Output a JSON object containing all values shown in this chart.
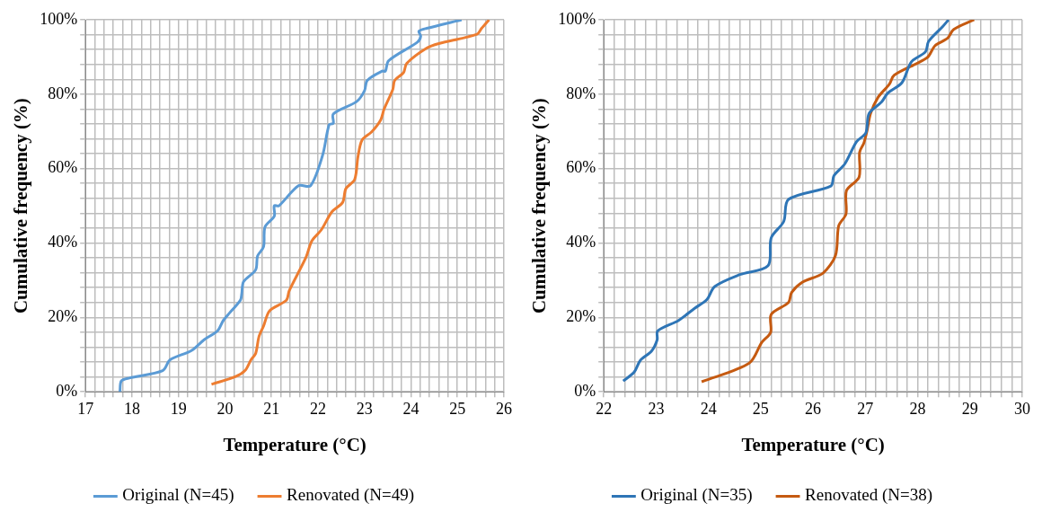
{
  "chart_data": [
    {
      "type": "line",
      "xlabel": "Temperature (°C)",
      "ylabel": "Cumulative frequency (%)",
      "legend": "bottom",
      "grid": true,
      "marker": "none",
      "line_style": "solid",
      "xlim": [
        17,
        26
      ],
      "ylim": [
        0,
        100
      ],
      "xticks": [
        17,
        {
          "value": 17.2,
          "label": null
        },
        {
          "value": 17.4,
          "label": null
        },
        {
          "value": 17.6,
          "label": null
        },
        {
          "value": 17.8,
          "label": null
        },
        18,
        {
          "value": 18.2,
          "label": null
        },
        {
          "value": 18.4,
          "label": null
        },
        {
          "value": 18.6,
          "label": null
        },
        {
          "value": 18.8,
          "label": null
        },
        19,
        {
          "value": 19.2,
          "label": null
        },
        {
          "value": 19.4,
          "label": null
        },
        {
          "value": 19.6,
          "label": null
        },
        {
          "value": 19.8,
          "label": null
        },
        20,
        {
          "value": 20.2,
          "label": null
        },
        {
          "value": 20.4,
          "label": null
        },
        {
          "value": 20.6,
          "label": null
        },
        {
          "value": 20.8,
          "label": null
        },
        21,
        {
          "value": 21.2,
          "label": null
        },
        {
          "value": 21.4,
          "label": null
        },
        {
          "value": 21.6,
          "label": null
        },
        {
          "value": 21.8,
          "label": null
        },
        22,
        {
          "value": 22.2,
          "label": null
        },
        {
          "value": 22.4,
          "label": null
        },
        {
          "value": 22.6,
          "label": null
        },
        {
          "value": 22.8,
          "label": null
        },
        23,
        {
          "value": 23.2,
          "label": null
        },
        {
          "value": 23.4,
          "label": null
        },
        {
          "value": 23.6,
          "label": null
        },
        {
          "value": 23.8,
          "label": null
        },
        24,
        {
          "value": 24.2,
          "label": null
        },
        {
          "value": 24.4,
          "label": null
        },
        {
          "value": 24.6,
          "label": null
        },
        {
          "value": 24.8,
          "label": null
        },
        25,
        {
          "value": 25.2,
          "label": null
        },
        {
          "value": 25.4,
          "label": null
        },
        {
          "value": 25.6,
          "label": null
        },
        {
          "value": 25.8,
          "label": null
        },
        26
      ],
      "yticks": [
        {
          "value": 0,
          "label": "0%"
        },
        {
          "value": 4,
          "label": null
        },
        {
          "value": 8,
          "label": null
        },
        {
          "value": 12,
          "label": null
        },
        {
          "value": 16,
          "label": null
        },
        {
          "value": 20,
          "label": "20%"
        },
        {
          "value": 24,
          "label": null
        },
        {
          "value": 28,
          "label": null
        },
        {
          "value": 32,
          "label": null
        },
        {
          "value": 36,
          "label": null
        },
        {
          "value": 40,
          "label": "40%"
        },
        {
          "value": 44,
          "label": null
        },
        {
          "value": 48,
          "label": null
        },
        {
          "value": 52,
          "label": null
        },
        {
          "value": 56,
          "label": null
        },
        {
          "value": 60,
          "label": "60%"
        },
        {
          "value": 64,
          "label": null
        },
        {
          "value": 68,
          "label": null
        },
        {
          "value": 72,
          "label": null
        },
        {
          "value": 76,
          "label": null
        },
        {
          "value": 80,
          "label": "80%"
        },
        {
          "value": 84,
          "label": null
        },
        {
          "value": 88,
          "label": null
        },
        {
          "value": 92,
          "label": null
        },
        {
          "value": 96,
          "label": null
        },
        {
          "value": 100,
          "label": "100%"
        }
      ],
      "series": [
        {
          "name": "Original (N=45)",
          "color": "#5b9bd5",
          "x": [
            17.74,
            17.77,
            17.94,
            18.66,
            18.82,
            19.28,
            19.55,
            19.84,
            19.97,
            20.33,
            20.36,
            20.4,
            20.66,
            20.7,
            20.83,
            20.86,
            21.06,
            21.06,
            21.16,
            21.58,
            21.84,
            22.1,
            22.24,
            22.33,
            22.33,
            22.83,
            23,
            23.06,
            23.38,
            23.45,
            23.52,
            24.14,
            24.21,
            24.17,
            24.34,
            25.09
          ],
          "values": [
            0,
            2.9,
            3.7,
            5.7,
            8.6,
            11.1,
            14,
            16.4,
            19.3,
            24.6,
            26.3,
            29.6,
            32.8,
            36.5,
            39,
            44.3,
            47.2,
            50,
            50,
            55.4,
            55.4,
            63.6,
            71.8,
            72.2,
            74.7,
            78,
            80.9,
            83.7,
            86.2,
            86.2,
            89,
            94,
            95.6,
            96.9,
            97.7,
            100
          ]
        },
        {
          "name": "Renovated (N=49)",
          "color": "#ed7d31",
          "x": [
            19.71,
            20.23,
            20.43,
            20.56,
            20.66,
            20.73,
            20.83,
            20.96,
            21.32,
            21.38,
            21.74,
            21.87,
            22.07,
            22.3,
            22.53,
            22.6,
            22.79,
            22.86,
            22.95,
            23.15,
            23.35,
            23.42,
            23.61,
            23.65,
            23.84,
            23.91,
            24.34,
            24.6,
            25.42,
            25.52,
            25.68
          ],
          "values": [
            2,
            4.1,
            5.7,
            8.6,
            10.3,
            14.8,
            17.7,
            21.8,
            24.6,
            27.1,
            36.1,
            40.6,
            43.5,
            48.4,
            50.9,
            54.6,
            57.1,
            63.2,
            67.7,
            69.8,
            73.1,
            75.9,
            81.3,
            83.7,
            85.8,
            88.3,
            92.4,
            93.6,
            96.1,
            97.7,
            100
          ]
        }
      ]
    },
    {
      "type": "line",
      "xlabel": "Temperature (°C)",
      "ylabel": "Cumulative frequency (%)",
      "legend": "bottom",
      "grid": true,
      "marker": "none",
      "line_style": "solid",
      "xlim": [
        22,
        30
      ],
      "ylim": [
        0,
        100
      ],
      "xticks": [
        22,
        {
          "value": 22.2,
          "label": null
        },
        {
          "value": 22.4,
          "label": null
        },
        {
          "value": 22.6,
          "label": null
        },
        {
          "value": 22.8,
          "label": null
        },
        23,
        {
          "value": 23.2,
          "label": null
        },
        {
          "value": 23.4,
          "label": null
        },
        {
          "value": 23.6,
          "label": null
        },
        {
          "value": 23.8,
          "label": null
        },
        24,
        {
          "value": 24.2,
          "label": null
        },
        {
          "value": 24.4,
          "label": null
        },
        {
          "value": 24.6,
          "label": null
        },
        {
          "value": 24.8,
          "label": null
        },
        25,
        {
          "value": 25.2,
          "label": null
        },
        {
          "value": 25.4,
          "label": null
        },
        {
          "value": 25.6,
          "label": null
        },
        {
          "value": 25.8,
          "label": null
        },
        26,
        {
          "value": 26.2,
          "label": null
        },
        {
          "value": 26.4,
          "label": null
        },
        {
          "value": 26.6,
          "label": null
        },
        {
          "value": 26.8,
          "label": null
        },
        27,
        {
          "value": 27.2,
          "label": null
        },
        {
          "value": 27.4,
          "label": null
        },
        {
          "value": 27.6,
          "label": null
        },
        {
          "value": 27.8,
          "label": null
        },
        28,
        {
          "value": 28.2,
          "label": null
        },
        {
          "value": 28.4,
          "label": null
        },
        {
          "value": 28.6,
          "label": null
        },
        {
          "value": 28.8,
          "label": null
        },
        29,
        {
          "value": 29.2,
          "label": null
        },
        {
          "value": 29.4,
          "label": null
        },
        {
          "value": 29.6,
          "label": null
        },
        {
          "value": 29.8,
          "label": null
        },
        30
      ],
      "yticks": [
        {
          "value": 0,
          "label": "0%"
        },
        {
          "value": 4,
          "label": null
        },
        {
          "value": 8,
          "label": null
        },
        {
          "value": 12,
          "label": null
        },
        {
          "value": 16,
          "label": null
        },
        {
          "value": 20,
          "label": "20%"
        },
        {
          "value": 24,
          "label": null
        },
        {
          "value": 28,
          "label": null
        },
        {
          "value": 32,
          "label": null
        },
        {
          "value": 36,
          "label": null
        },
        {
          "value": 40,
          "label": "40%"
        },
        {
          "value": 44,
          "label": null
        },
        {
          "value": 48,
          "label": null
        },
        {
          "value": 52,
          "label": null
        },
        {
          "value": 56,
          "label": null
        },
        {
          "value": 60,
          "label": "60%"
        },
        {
          "value": 64,
          "label": null
        },
        {
          "value": 68,
          "label": null
        },
        {
          "value": 72,
          "label": null
        },
        {
          "value": 76,
          "label": null
        },
        {
          "value": 80,
          "label": "80%"
        },
        {
          "value": 84,
          "label": null
        },
        {
          "value": 88,
          "label": null
        },
        {
          "value": 92,
          "label": null
        },
        {
          "value": 96,
          "label": null
        },
        {
          "value": 100,
          "label": "100%"
        }
      ],
      "series": [
        {
          "name": "Original (N=35)",
          "color": "#2e75b6",
          "x": [
            22.37,
            22.58,
            22.7,
            22.91,
            23.02,
            23.03,
            23.43,
            23.73,
            23.97,
            24.12,
            24.6,
            25.14,
            25.2,
            25.44,
            25.53,
            26.34,
            26.4,
            26.61,
            26.83,
            27.01,
            27.07,
            27.31,
            27.43,
            27.7,
            27.88,
            28.15,
            28.21,
            28.48,
            28.59
          ],
          "values": [
            2.9,
            5.3,
            8.5,
            10.9,
            14,
            16.4,
            19.2,
            22.4,
            24.8,
            28.3,
            31.5,
            33.9,
            41.4,
            45.8,
            51.7,
            55.3,
            58.1,
            61.3,
            67.2,
            69.6,
            74.8,
            77.9,
            80.3,
            83.1,
            88.7,
            91.4,
            94.2,
            98.2,
            100
          ]
        },
        {
          "name": "Renovated (N=38)",
          "color": "#c55a11",
          "x": [
            23.87,
            24.78,
            25.02,
            25.19,
            25.2,
            25.53,
            25.59,
            25.8,
            26.19,
            26.43,
            26.49,
            26.63,
            26.64,
            26.88,
            26.89,
            26.97,
            27.03,
            27.1,
            27.24,
            27.46,
            27.55,
            28.18,
            28.33,
            28.57,
            28.69,
            29.08
          ],
          "values": [
            2.7,
            7.7,
            13.3,
            16,
            20.8,
            24,
            26.7,
            29.5,
            31.9,
            36.7,
            44.6,
            47.8,
            54.1,
            57.7,
            64.4,
            66.8,
            70,
            74.8,
            79.1,
            82.7,
            85.1,
            89.8,
            93,
            95,
            97.4,
            100
          ]
        }
      ]
    }
  ]
}
